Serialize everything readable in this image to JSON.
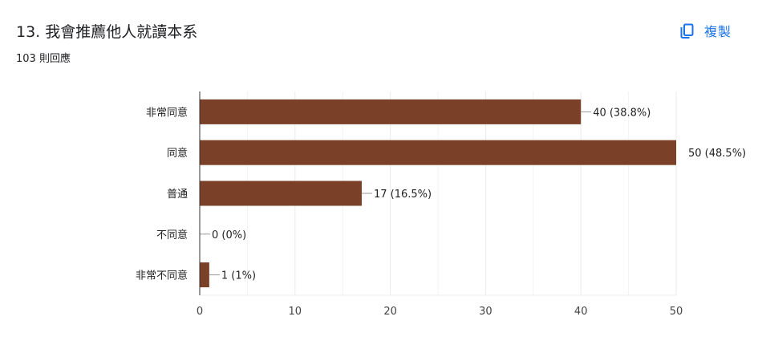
{
  "question": {
    "title": "13. 我會推薦他人就讀本系",
    "response_count": "103 則回應"
  },
  "toolbar": {
    "copy_label": "複製",
    "copy_icon": "copy-icon"
  },
  "colors": {
    "bar": "#7b4028",
    "grid": "#ebebeb",
    "axis": "#333333",
    "accent": "#1a73e8"
  },
  "chart_data": {
    "type": "bar",
    "orientation": "horizontal",
    "categories": [
      "非常同意",
      "同意",
      "普通",
      "不同意",
      "非常不同意"
    ],
    "values": [
      40,
      50,
      17,
      0,
      1
    ],
    "data_labels": [
      "40 (38.8%)",
      "50 (48.5%)",
      "17 (16.5%)",
      "0 (0%)",
      "1 (1%)"
    ],
    "xlim": [
      0,
      50
    ],
    "xticks": [
      0,
      10,
      20,
      30,
      40,
      50
    ],
    "grid": true,
    "legend": "none"
  }
}
